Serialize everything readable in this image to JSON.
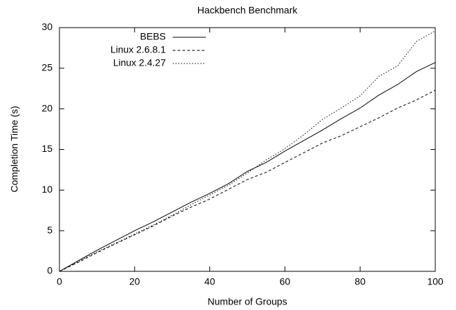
{
  "chart_data": {
    "type": "line",
    "title": "Hackbench Benchmark",
    "x_label": "Number of Groups",
    "y_label": "Completion Time (s)",
    "x": [
      0,
      5,
      10,
      15,
      20,
      25,
      30,
      35,
      40,
      45,
      50,
      55,
      60,
      65,
      70,
      75,
      80,
      85,
      90,
      95,
      100
    ],
    "series": [
      {
        "name": "BEBS",
        "color": "#000000",
        "dash": "none",
        "values": [
          0,
          1.3,
          2.6,
          3.8,
          5.0,
          6.1,
          7.3,
          8.5,
          9.6,
          10.8,
          12.3,
          13.4,
          14.8,
          16.1,
          17.4,
          18.8,
          20.1,
          21.7,
          23.0,
          24.6,
          25.7
        ]
      },
      {
        "name": "Linux 2.6.8.1",
        "color": "#000000",
        "dash": "4 3",
        "values": [
          0,
          1.1,
          2.3,
          3.4,
          4.5,
          5.6,
          6.8,
          7.9,
          8.9,
          10.1,
          11.3,
          12.2,
          13.4,
          14.6,
          15.8,
          16.7,
          17.8,
          18.9,
          20.1,
          21.1,
          22.3
        ]
      },
      {
        "name": "Linux 2.4.27",
        "color": "#000000",
        "dash": "1.5 2.5",
        "values": [
          0,
          1.2,
          2.4,
          3.5,
          4.6,
          5.7,
          6.9,
          8.2,
          9.4,
          10.6,
          12.1,
          13.7,
          15.1,
          16.8,
          18.7,
          20.1,
          21.6,
          24.0,
          25.3,
          28.3,
          29.6
        ]
      }
    ],
    "xlim": [
      0,
      100
    ],
    "xticks": [
      0,
      20,
      40,
      60,
      80,
      100
    ],
    "ylim": [
      0,
      30
    ],
    "yticks": [
      0,
      5,
      10,
      15,
      20,
      25,
      30
    ],
    "grid": false,
    "legend": "upper-left"
  }
}
